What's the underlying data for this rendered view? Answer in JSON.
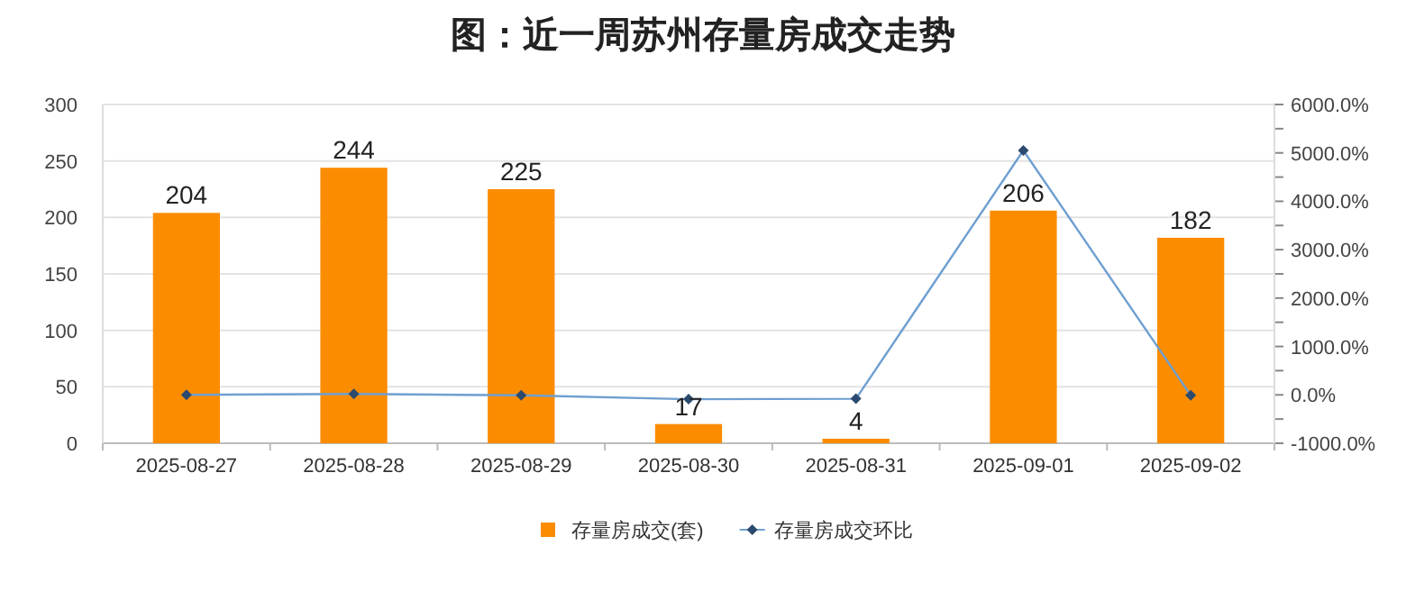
{
  "chart_data": {
    "type": "bar",
    "title": "图：近一周苏州存量房成交走势",
    "categories": [
      "2025-08-27",
      "2025-08-28",
      "2025-08-29",
      "2025-08-30",
      "2025-08-31",
      "2025-09-01",
      "2025-09-02"
    ],
    "series": [
      {
        "name": "存量房成交(套)",
        "color": "#fb8c00",
        "values": [
          204,
          244,
          225,
          17,
          4,
          206,
          182
        ],
        "value_labels": [
          "204",
          "244",
          "225",
          "17",
          "4",
          "206",
          "182"
        ]
      },
      {
        "name": "存量房成交环比",
        "type": "line",
        "axis": "y2",
        "color": "#6f9fd0",
        "marker": "diamond",
        "values": [
          0,
          20,
          -10,
          -90,
          -80,
          5050,
          -10
        ]
      }
    ],
    "ylim": [
      0,
      300
    ],
    "yticks": [
      0,
      50,
      100,
      150,
      200,
      250,
      300
    ],
    "y2lim": [
      -1000,
      6000
    ],
    "y2ticks": [
      {
        "value": -1000,
        "label": "-1000.0%"
      },
      {
        "value": -500,
        "label": null
      },
      {
        "value": 0,
        "label": "0.0%"
      },
      {
        "value": 500,
        "label": null
      },
      {
        "value": 1000,
        "label": "1000.0%"
      },
      {
        "value": 1500,
        "label": null
      },
      {
        "value": 2000,
        "label": "2000.0%"
      },
      {
        "value": 2500,
        "label": null
      },
      {
        "value": 3000,
        "label": "3000.0%"
      },
      {
        "value": 3500,
        "label": null
      },
      {
        "value": 4000,
        "label": "4000.0%"
      },
      {
        "value": 4500,
        "label": null
      },
      {
        "value": 5000,
        "label": "5000.0%"
      },
      {
        "value": 5500,
        "label": null
      },
      {
        "value": 6000,
        "label": "6000.0%"
      }
    ],
    "grid": "y",
    "legend": "bottom"
  }
}
